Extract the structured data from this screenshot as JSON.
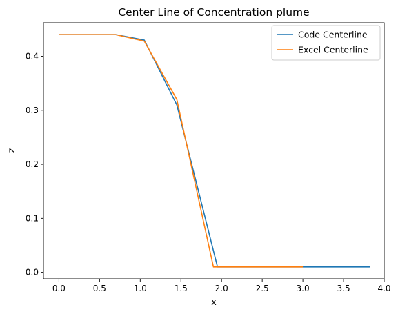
{
  "chart_data": {
    "type": "line",
    "title": "Center Line of Concentration plume",
    "xlabel": "x",
    "ylabel": "z",
    "xlim": [
      -0.19,
      4.0
    ],
    "ylim": [
      -0.012,
      0.462
    ],
    "xticks": [
      0.0,
      0.5,
      1.0,
      1.5,
      2.0,
      2.5,
      3.0,
      3.5,
      4.0
    ],
    "xtick_labels": [
      "0.0",
      "0.5",
      "1.0",
      "1.5",
      "2.0",
      "2.5",
      "3.0",
      "3.5",
      "4.0"
    ],
    "yticks": [
      0.0,
      0.1,
      0.2,
      0.3,
      0.4
    ],
    "ytick_labels": [
      "0.0",
      "0.1",
      "0.2",
      "0.3",
      "0.4"
    ],
    "grid": false,
    "legend_position": "top-right",
    "series": [
      {
        "name": "Code Centerline",
        "color": "#1f77b4",
        "x": [
          0.0,
          0.7,
          1.05,
          1.45,
          1.95,
          3.0,
          3.83
        ],
        "y": [
          0.44,
          0.44,
          0.43,
          0.31,
          0.01,
          0.01,
          0.01
        ]
      },
      {
        "name": "Excel Centerline",
        "color": "#ff7f0e",
        "x": [
          0.0,
          0.7,
          1.05,
          1.45,
          1.9,
          3.0
        ],
        "y": [
          0.44,
          0.44,
          0.428,
          0.32,
          0.01,
          0.01
        ]
      }
    ]
  }
}
